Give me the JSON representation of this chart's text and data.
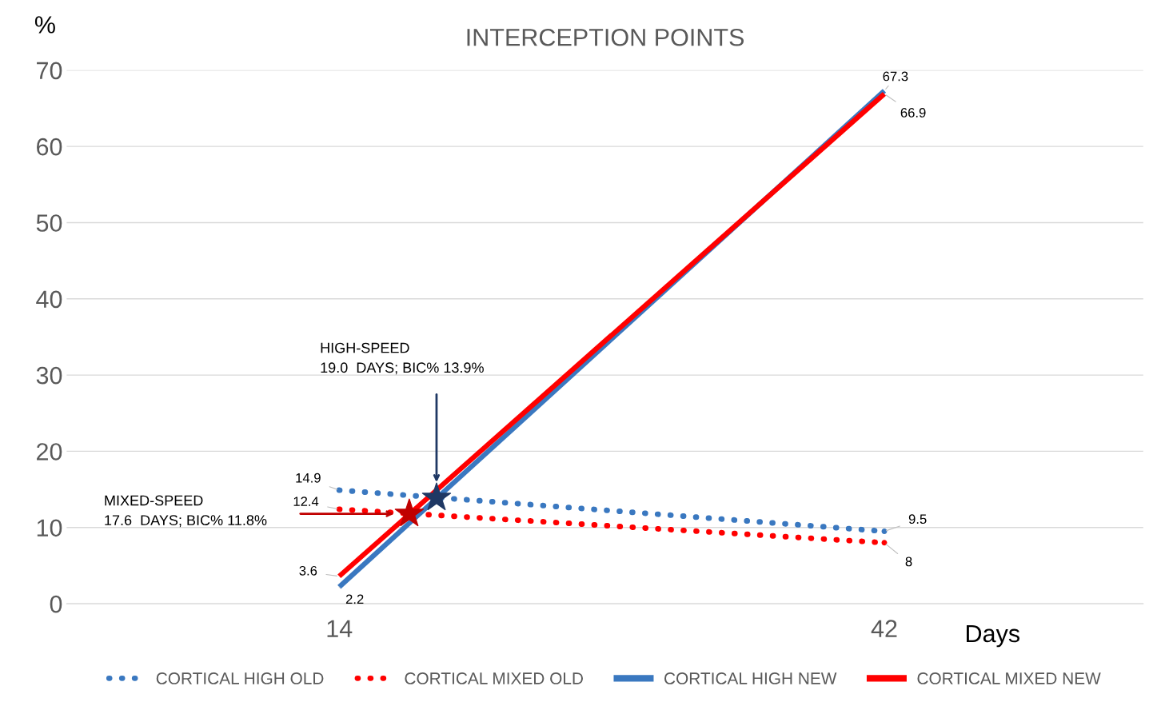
{
  "chart_data": {
    "type": "line",
    "title": "INTERCEPTION POINTS",
    "xlabel": "Days",
    "ylabel": "%",
    "x": [
      14,
      42
    ],
    "xlim": [
      0,
      55.3
    ],
    "xticks": [
      14,
      42
    ],
    "ylim": [
      0,
      70
    ],
    "yticks": [
      0,
      10,
      20,
      30,
      40,
      50,
      60,
      70
    ],
    "grid": "y",
    "legend": "bottom",
    "series": [
      {
        "name": "CORTICAL HIGH OLD",
        "color": "#3a78c0",
        "values": [
          14.9,
          9.5
        ],
        "line_style": "dotted",
        "value_labels": [
          "14.9",
          "9.5"
        ]
      },
      {
        "name": "CORTICAL MIXED OLD",
        "color": "#ff0000",
        "values": [
          12.4,
          8
        ],
        "line_style": "dotted",
        "value_labels": [
          "12.4",
          "8"
        ]
      },
      {
        "name": "CORTICAL HIGH NEW",
        "color": "#3a78c0",
        "values": [
          2.2,
          67.3
        ],
        "line_style": "solid",
        "value_labels": [
          "2.2",
          "67.3"
        ]
      },
      {
        "name": "CORTICAL MIXED NEW",
        "color": "#ff0000",
        "values": [
          3.6,
          66.9
        ],
        "line_style": "solid",
        "value_labels": [
          "3.6",
          "66.9"
        ]
      },
      {
        "type": "scatter",
        "marker": "star",
        "color": "#c00000",
        "x": [
          17.6
        ],
        "values": [
          11.8
        ]
      },
      {
        "type": "scatter",
        "marker": "star",
        "color": "#1f3864",
        "x": [
          19.0
        ],
        "values": [
          13.9
        ]
      }
    ],
    "annotations": [
      "MIXED-SPEED\n17.6  DAYS; BIC% 11.8%",
      "HIGH-SPEED\n19.0  DAYS; BIC% 13.9%"
    ]
  }
}
